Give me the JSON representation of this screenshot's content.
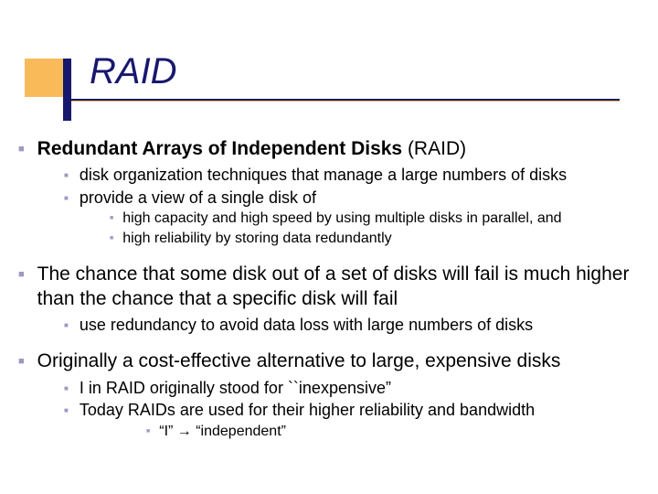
{
  "colors": {
    "navy": "#18186d",
    "orange": "#f9bb5a",
    "bullet": "#9a9ac2",
    "text": "#000000",
    "background": "#ffffff"
  },
  "typography": {
    "title_fontsize": 40,
    "title_style": "italic",
    "lvl1_fontsize": 21,
    "lvl2_fontsize": 18,
    "lvl3_fontsize": 16,
    "lvl4_fontsize": 16,
    "font_family": "Verdana"
  },
  "title": "RAID",
  "b1": {
    "prefix": "Redundant Arrays of Independent Disks",
    "suffix": " (RAID)"
  },
  "b1_1": "disk organization techniques that manage a large numbers of disks",
  "b1_2": "provide a view of a single disk of",
  "b1_2_1": {
    "p1": "high capacity",
    "p2": " and ",
    "p3": "high speed",
    "p4": "  by using multiple disks in parallel, and"
  },
  "b1_2_2": {
    "p1": "high reliability",
    "p2": " by storing data redundantly"
  },
  "b2": "The chance that some disk out of a set of disks will fail is much higher than the chance that a specific disk will fail",
  "b2_1": "use redundancy to avoid data loss with large numbers of disks",
  "b3": "Originally a cost-effective alternative to large, expensive disks",
  "b3_1": "I in RAID originally stood for ``inexpensive”",
  "b3_2": "Today RAIDs are used for their higher reliability and bandwidth",
  "b3_2_1": "“I” →  “independent”"
}
